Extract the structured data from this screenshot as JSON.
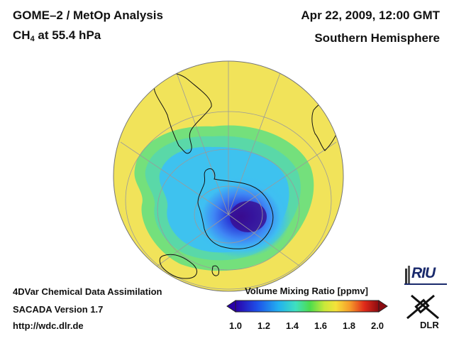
{
  "header": {
    "title": "GOME–2 / MetOp Analysis",
    "species": "CH",
    "species_sub": "4",
    "level": " at 55.4 hPa",
    "datetime": "Apr 22, 2009, 12:00 GMT",
    "region": "Southern Hemisphere"
  },
  "footer": {
    "line1": "4DVar Chemical Data Assimilation",
    "line2": "SACADA Version 1.7",
    "line3": "http://wdc.dlr.de"
  },
  "colorbar": {
    "title": "Volume Mixing Ratio [ppmv]",
    "ticks": [
      "1.0",
      "1.2",
      "1.4",
      "1.6",
      "1.8",
      "2.0"
    ],
    "min": 1.0,
    "max": 2.0
  },
  "logos": {
    "riu": "RIU",
    "dlr": "DLR"
  },
  "colors": {
    "field_high": "#f2e55a",
    "field_mid": "#5fe07a",
    "field_low": "#38b8ee",
    "field_min": "#3a0b8f",
    "coast": "#111111",
    "grid": "#9a9a9a"
  }
}
